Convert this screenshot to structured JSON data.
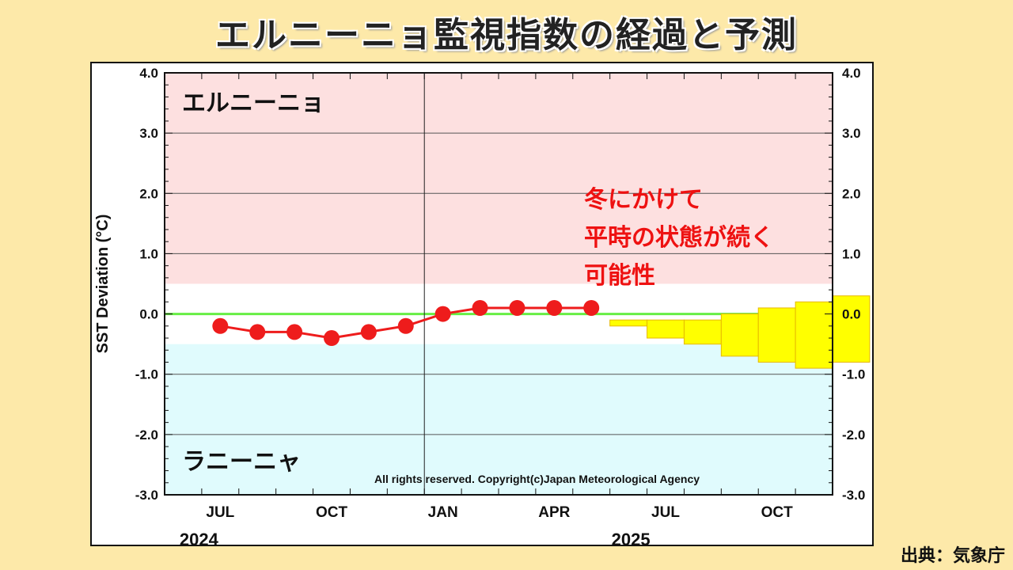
{
  "title": "エルニーニョ監視指数の経過と予測",
  "source": "出典：気象庁",
  "copyright": "All rights reserved. Copyright(c)Japan Meteorological Agency",
  "region_el_nino": "エルニーニョ",
  "region_la_nina": "ラニーニャ",
  "annotation_lines": [
    "冬にかけて",
    "平時の状態が続く",
    "可能性"
  ],
  "colors": {
    "el_nino_band": "#fde0e0",
    "la_nina_band": "#e0fbfd",
    "observed": "#ee1c1c",
    "forecast_box": "#ffff00",
    "forecast_edge": "#e6b800",
    "zero_line": "#66ee44",
    "annotation": "#ee1111"
  },
  "chart_data": {
    "type": "line",
    "ylabel": "SST Deviation (°C)",
    "ylim": [
      -3.0,
      4.0
    ],
    "yticks": [
      "4.0",
      "3.0",
      "2.0",
      "1.0",
      "0.0",
      "-1.0",
      "-2.0",
      "-3.0"
    ],
    "xticks": [
      "JUL",
      "OCT",
      "JAN",
      "APR",
      "JUL",
      "OCT"
    ],
    "year_labels": [
      "2024",
      "2025"
    ],
    "normal_range": [
      -0.5,
      0.5
    ],
    "grid": true,
    "observed": {
      "months": [
        "2024-07",
        "2024-08",
        "2024-09",
        "2024-10",
        "2024-11",
        "2024-12",
        "2025-01",
        "2025-02",
        "2025-03",
        "2025-04",
        "2025-05"
      ],
      "values": [
        -0.2,
        -0.3,
        -0.3,
        -0.4,
        -0.3,
        -0.2,
        0.0,
        0.1,
        0.1,
        0.1,
        0.1
      ]
    },
    "forecast": {
      "months": [
        "2025-06",
        "2025-07",
        "2025-08",
        "2025-09",
        "2025-10",
        "2025-11",
        "2025-12"
      ],
      "low": [
        -0.2,
        -0.4,
        -0.5,
        -0.7,
        -0.8,
        -0.9,
        -0.8
      ],
      "high": [
        -0.1,
        -0.1,
        -0.1,
        0.0,
        0.1,
        0.2,
        0.3
      ]
    }
  }
}
